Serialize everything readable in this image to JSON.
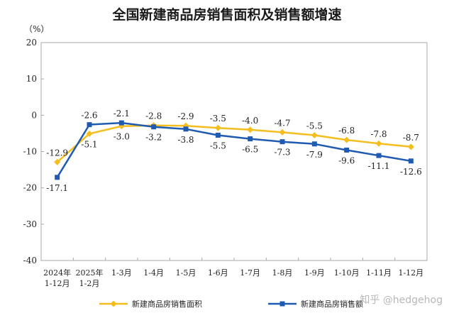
{
  "chart_data": {
    "type": "line",
    "title": "全国新建商品房销售面积及销售额增速",
    "unit_label": "（%）",
    "categories": [
      [
        "2024年",
        "1-12月"
      ],
      [
        "2025年",
        "1-2月"
      ],
      [
        "1-3月"
      ],
      [
        "1-4月"
      ],
      [
        "1-5月"
      ],
      [
        "1-6月"
      ],
      [
        "1-7月"
      ],
      [
        "1-8月"
      ],
      [
        "1-9月"
      ],
      [
        "1-10月"
      ],
      [
        "1-11月"
      ],
      [
        "1-12月"
      ]
    ],
    "ylim": [
      -40,
      20
    ],
    "yticks": [
      20,
      10,
      0,
      -10,
      -20,
      -30,
      -40
    ],
    "grid": false,
    "legend_position": "bottom",
    "series": [
      {
        "name": "新建商品房销售面积",
        "color": "#F5BE1E",
        "marker": "diamond",
        "values": [
          -12.9,
          -5.1,
          -3.0,
          -2.8,
          -2.9,
          -3.5,
          -4.0,
          -4.7,
          -5.5,
          -6.8,
          -7.8,
          -8.7
        ],
        "labels": [
          "-12.9",
          "-5.1",
          "-3.0",
          "-2.8",
          "-2.9",
          "-3.5",
          "-4.0",
          "-4.7",
          "-5.5",
          "-6.8",
          "-7.8",
          "-8.7"
        ]
      },
      {
        "name": "新建商品房销售额",
        "color": "#1F5BB0",
        "marker": "square",
        "values": [
          -17.1,
          -2.6,
          -2.1,
          -3.2,
          -3.8,
          -5.5,
          -6.5,
          -7.3,
          -7.9,
          -9.6,
          -11.1,
          -12.6
        ],
        "labels": [
          "-17.1",
          "-2.6",
          "-2.1",
          "-3.2",
          "-3.8",
          "-5.5",
          "-6.5",
          "-7.3",
          "-7.9",
          "-9.6",
          "-11.1",
          "-12.6"
        ]
      }
    ]
  },
  "watermark": "知乎 @hedgehog"
}
